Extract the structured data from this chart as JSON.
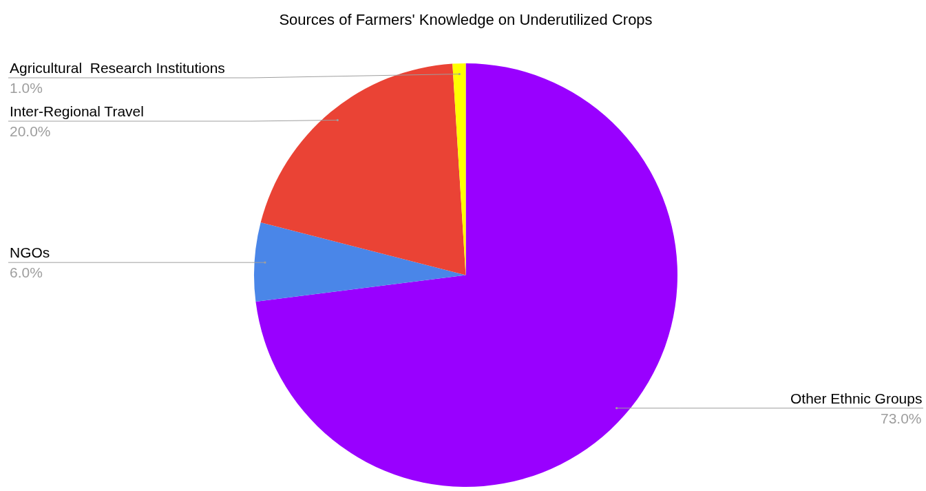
{
  "chart_data": {
    "type": "pie",
    "title": "Sources of Farmers' Knowledge on Underutilized Crops",
    "categories": [
      "Other Ethnic Groups",
      "NGOs",
      "Inter-Regional Travel",
      "Agricultural  Research Institutions"
    ],
    "values": [
      73,
      6,
      20,
      1
    ],
    "colors": [
      "#9900ff",
      "#4a86e8",
      "#ea4335",
      "#ffff00"
    ],
    "value_labels": [
      "73.0%",
      "6.0%",
      "20.0%",
      "1.0%"
    ]
  }
}
